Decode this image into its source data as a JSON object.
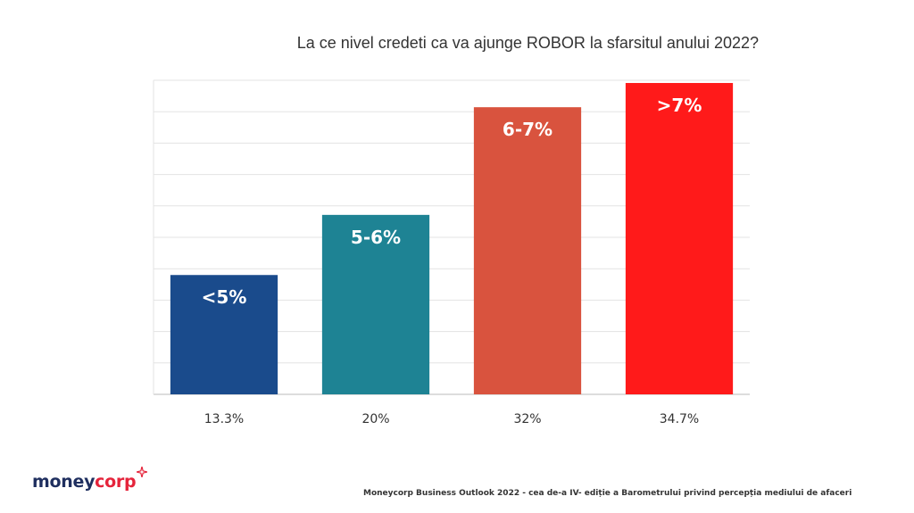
{
  "chart_data": {
    "type": "bar",
    "title": "La ce nivel credeti ca va ajunge ROBOR la sfarsitul anului 2022?",
    "categories": [
      "13.3%",
      "20%",
      "32%",
      "34.7%"
    ],
    "values": [
      13.3,
      20,
      32,
      34.7
    ],
    "bar_labels": [
      "<5%",
      "5-6%",
      "6-7%",
      ">7%"
    ],
    "colors": [
      "#1a4b8c",
      "#1e8394",
      "#d9533e",
      "#ff1a1a"
    ],
    "grid": true,
    "ylim": [
      0,
      35
    ]
  },
  "brand": {
    "logo_word_1": "money",
    "logo_word_2": "corp",
    "logo_color_1": "#1f2f5f",
    "logo_color_2": "#e5243b"
  },
  "footer": {
    "note": "Moneycorp Business Outlook 2022 - cea de-a IV- ediție a Barometrului privind percepția mediului de afaceri"
  }
}
